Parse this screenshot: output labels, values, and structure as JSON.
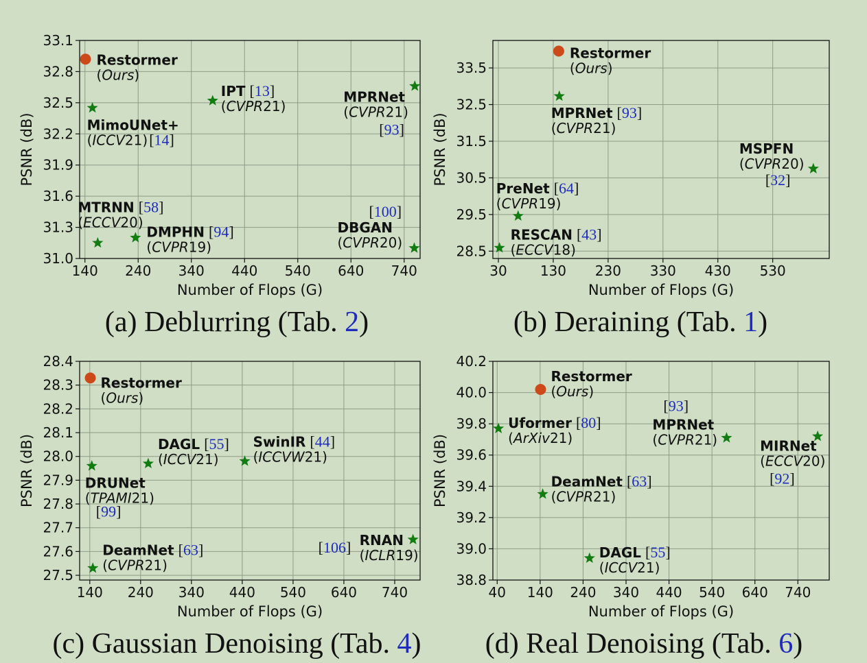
{
  "colors": {
    "ours": "#cc4a1a",
    "others": "#127b12",
    "ref": "#1f2bbd"
  },
  "chart_data": [
    {
      "type": "scatter",
      "caption": {
        "before": "(a) Deblurring (Tab. ",
        "ref": "2",
        "after": ")"
      },
      "xlabel": "Number of Flops (G)",
      "ylabel": "PSNR (dB)",
      "xlim": [
        130,
        770
      ],
      "ylim": [
        31.0,
        33.1
      ],
      "xticks": [
        "140",
        "240",
        "340",
        "440",
        "540",
        "640",
        "740"
      ],
      "yticks": [
        "31.0",
        "31.3",
        "31.6",
        "31.9",
        "32.2",
        "32.5",
        "32.8",
        "33.1"
      ],
      "grid": true,
      "points": [
        {
          "name": "Restormer",
          "venue": "Ours",
          "year": "",
          "ref": "",
          "x": 141,
          "y": 32.92,
          "marker": "circle"
        },
        {
          "name": "MimoUNet+",
          "venue": "ICCV",
          "year": "21",
          "ref": "14",
          "x": 154,
          "y": 32.45,
          "marker": "star"
        },
        {
          "name": "IPT",
          "venue": "CVPR",
          "year": "21",
          "ref": "13",
          "x": 380,
          "y": 32.52,
          "marker": "star"
        },
        {
          "name": "MPRNet",
          "venue": "CVPR",
          "year": "21",
          "ref": "93",
          "x": 760,
          "y": 32.66,
          "marker": "star"
        },
        {
          "name": "MTRNN",
          "venue": "ECCV",
          "year": "20",
          "ref": "58",
          "x": 164,
          "y": 31.15,
          "marker": "star"
        },
        {
          "name": "DMPHN",
          "venue": "CVPR",
          "year": "19",
          "ref": "94",
          "x": 235,
          "y": 31.2,
          "marker": "star"
        },
        {
          "name": "DBGAN",
          "venue": "CVPR",
          "year": "20",
          "ref": "100",
          "x": 759,
          "y": 31.1,
          "marker": "star"
        }
      ]
    },
    {
      "type": "scatter",
      "caption": {
        "before": "(b) Deraining (Tab. ",
        "ref": "1",
        "after": ")"
      },
      "xlabel": "Number of Flops (G)",
      "ylabel": "PSNR (dB)",
      "xlim": [
        20,
        633
      ],
      "ylim": [
        28.3,
        34.25
      ],
      "xticks": [
        "30",
        "130",
        "230",
        "330",
        "430",
        "530"
      ],
      "yticks": [
        "28.5",
        "29.5",
        "30.5",
        "31.5",
        "32.5",
        "33.5"
      ],
      "grid": true,
      "points": [
        {
          "name": "Restormer",
          "venue": "Ours",
          "year": "",
          "ref": "",
          "x": 140,
          "y": 33.96,
          "marker": "circle"
        },
        {
          "name": "MPRNet",
          "venue": "CVPR",
          "year": "21",
          "ref": "93",
          "x": 141,
          "y": 32.73,
          "marker": "star"
        },
        {
          "name": "MSPFN",
          "venue": "CVPR",
          "year": "20",
          "ref": "32",
          "x": 604,
          "y": 30.75,
          "marker": "star"
        },
        {
          "name": "PreNet",
          "venue": "CVPR",
          "year": "19",
          "ref": "64",
          "x": 66,
          "y": 29.46,
          "marker": "star"
        },
        {
          "name": "RESCAN",
          "venue": "ECCV",
          "year": "18",
          "ref": "43",
          "x": 32,
          "y": 28.59,
          "marker": "star"
        }
      ]
    },
    {
      "type": "scatter",
      "caption": {
        "before": "(c) Gaussian Denoising (Tab. ",
        "ref": "4",
        "after": ")"
      },
      "xlabel": "Number of Flops (G)",
      "ylabel": "PSNR (dB)",
      "xlim": [
        120,
        790
      ],
      "ylim": [
        27.48,
        28.4
      ],
      "xticks": [
        "140",
        "240",
        "340",
        "440",
        "540",
        "640",
        "740"
      ],
      "yticks": [
        "27.5",
        "27.6",
        "27.7",
        "27.8",
        "27.9",
        "28.0",
        "28.1",
        "28.2",
        "28.3",
        "28.4"
      ],
      "grid": true,
      "points": [
        {
          "name": "Restormer",
          "venue": "Ours",
          "year": "",
          "ref": "",
          "x": 141,
          "y": 28.33,
          "marker": "circle"
        },
        {
          "name": "DRUNet",
          "venue": "TPAMI",
          "year": "21",
          "ref": "99",
          "x": 144,
          "y": 27.96,
          "marker": "star"
        },
        {
          "name": "DAGL",
          "venue": "ICCV",
          "year": "21",
          "ref": "55",
          "x": 255,
          "y": 27.97,
          "marker": "star"
        },
        {
          "name": "SwinIR",
          "venue": "ICCVW",
          "year": "21",
          "ref": "44",
          "x": 445,
          "y": 27.98,
          "marker": "star"
        },
        {
          "name": "DeamNet",
          "venue": "CVPR",
          "year": "21",
          "ref": "63",
          "x": 146,
          "y": 27.53,
          "marker": "star"
        },
        {
          "name": "RNAN",
          "venue": "ICLR",
          "year": "19",
          "ref": "106",
          "x": 776,
          "y": 27.65,
          "marker": "star"
        }
      ]
    },
    {
      "type": "scatter",
      "caption": {
        "before": "(d) Real Denoising (Tab. ",
        "ref": "6",
        "after": ")"
      },
      "xlabel": "Number of Flops (G)",
      "ylabel": "PSNR (dB)",
      "xlim": [
        30,
        813
      ],
      "ylim": [
        38.8,
        40.2
      ],
      "xticks": [
        "40",
        "140",
        "240",
        "340",
        "440",
        "540",
        "640",
        "740"
      ],
      "yticks": [
        "38.8",
        "39.0",
        "39.2",
        "39.4",
        "39.6",
        "39.8",
        "40.0",
        "40.2"
      ],
      "grid": true,
      "points": [
        {
          "name": "Restormer",
          "venue": "Ours",
          "year": "",
          "ref": "",
          "x": 141,
          "y": 40.02,
          "marker": "circle"
        },
        {
          "name": "Uformer",
          "venue": "ArXiv",
          "year": "21",
          "ref": "80",
          "x": 43,
          "y": 39.77,
          "marker": "star"
        },
        {
          "name": "MPRNet",
          "venue": "CVPR",
          "year": "21",
          "ref": "93",
          "x": 574,
          "y": 39.71,
          "marker": "star"
        },
        {
          "name": "MIRNet",
          "venue": "ECCV",
          "year": "20",
          "ref": "92",
          "x": 786,
          "y": 39.72,
          "marker": "star"
        },
        {
          "name": "DeamNet",
          "venue": "CVPR",
          "year": "21",
          "ref": "63",
          "x": 146,
          "y": 39.35,
          "marker": "star"
        },
        {
          "name": "DAGL",
          "venue": "ICCV",
          "year": "21",
          "ref": "55",
          "x": 255,
          "y": 38.94,
          "marker": "star"
        }
      ]
    }
  ]
}
